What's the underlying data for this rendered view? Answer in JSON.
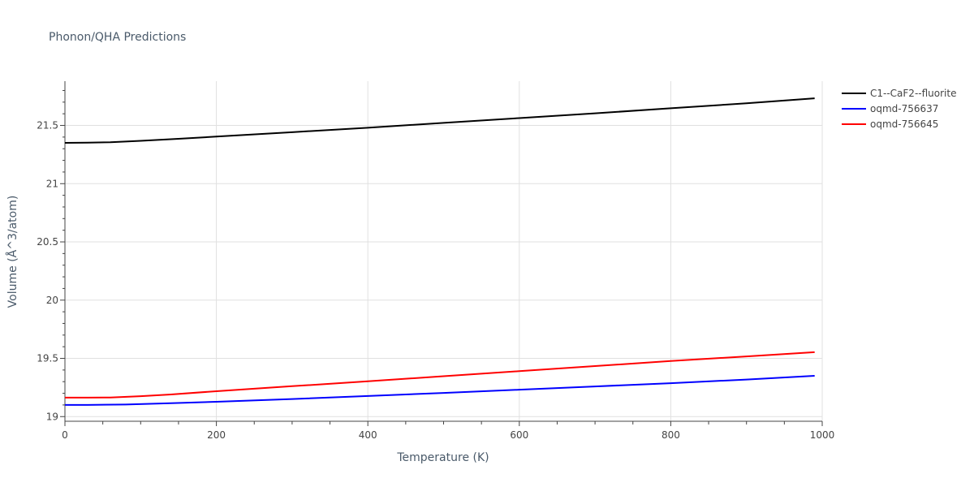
{
  "chart_data": {
    "type": "line",
    "title": "Phonon/QHA Predictions",
    "xlabel": "Temperature (K)",
    "ylabel": "Volume (Å^3/atom)",
    "xlim": [
      0,
      1000
    ],
    "ylim": [
      18.96,
      21.88
    ],
    "x_ticks": [
      0,
      200,
      400,
      600,
      800,
      1000
    ],
    "x_tick_labels": [
      "0",
      "200",
      "400",
      "600",
      "800",
      "1000"
    ],
    "y_ticks": [
      19,
      19.5,
      20,
      20.5,
      21,
      21.5
    ],
    "y_tick_labels": [
      "19",
      "19.5",
      "20",
      "20.5",
      "21",
      "21.5"
    ],
    "grid": true,
    "legend_position": "top-right",
    "series": [
      {
        "name": "C1--CaF2--fluorite",
        "color": "#000000",
        "x": [
          0,
          30,
          60,
          100,
          150,
          200,
          300,
          400,
          500,
          600,
          700,
          800,
          900,
          990
        ],
        "y": [
          21.35,
          21.352,
          21.356,
          21.368,
          21.385,
          21.404,
          21.442,
          21.48,
          21.522,
          21.563,
          21.604,
          21.647,
          21.69,
          21.733
        ]
      },
      {
        "name": "oqmd-756637",
        "color": "#0000ff",
        "x": [
          0,
          30,
          80,
          140,
          200,
          300,
          400,
          500,
          600,
          700,
          800,
          900,
          990
        ],
        "y": [
          19.1,
          19.1,
          19.104,
          19.115,
          19.127,
          19.151,
          19.177,
          19.203,
          19.231,
          19.259,
          19.287,
          19.318,
          19.35
        ]
      },
      {
        "name": "oqmd-756645",
        "color": "#ff0000",
        "x": [
          0,
          30,
          60,
          100,
          140,
          200,
          300,
          400,
          500,
          600,
          700,
          800,
          900,
          990
        ],
        "y": [
          19.163,
          19.163,
          19.164,
          19.175,
          19.19,
          19.218,
          19.261,
          19.303,
          19.347,
          19.39,
          19.434,
          19.477,
          19.517,
          19.553
        ]
      }
    ]
  }
}
